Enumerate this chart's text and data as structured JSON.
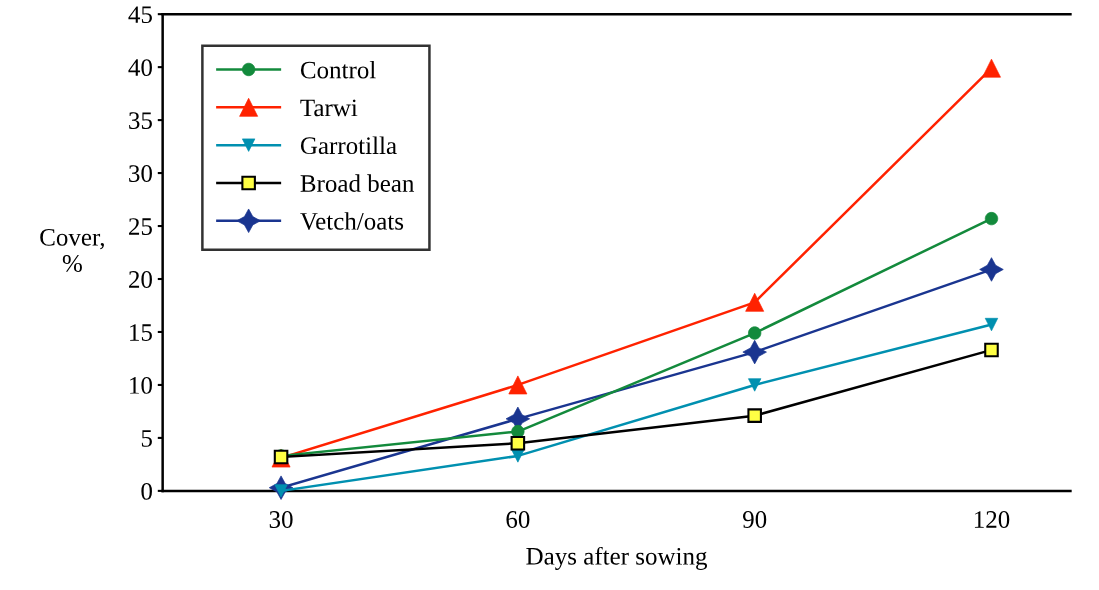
{
  "chart_data": {
    "type": "line",
    "xlabel": "Days after sowing",
    "ylabel": "Cover,\n%",
    "x": [
      30,
      60,
      90,
      120
    ],
    "xlim": [
      15,
      130
    ],
    "xticks": [
      30,
      60,
      90,
      120
    ],
    "ylim": [
      0,
      45
    ],
    "yticks": [
      0,
      5,
      10,
      15,
      20,
      25,
      30,
      35,
      40,
      45
    ],
    "grid": false,
    "legend": "top left",
    "line_style": "solid",
    "series": [
      {
        "name": "Control",
        "color": "#138a3c",
        "marker": "circle",
        "values": [
          3.3,
          5.6,
          14.9,
          25.7
        ]
      },
      {
        "name": "Tarwi",
        "color": "#ff2200",
        "marker": "triangle",
        "values": [
          3.1,
          10.0,
          17.8,
          39.9
        ]
      },
      {
        "name": "Garrotilla",
        "color": "#0090b0",
        "marker": "triangle_down",
        "values": [
          0,
          3.3,
          10.0,
          15.7
        ]
      },
      {
        "name": "Broad bean",
        "color": "#000000",
        "marker": "square",
        "values": [
          3.2,
          4.5,
          7.1,
          13.3
        ]
      },
      {
        "name": "Vetch/oats",
        "color": "#1a3590",
        "marker": "star",
        "values": [
          0.3,
          6.8,
          13.1,
          20.9
        ]
      }
    ]
  }
}
